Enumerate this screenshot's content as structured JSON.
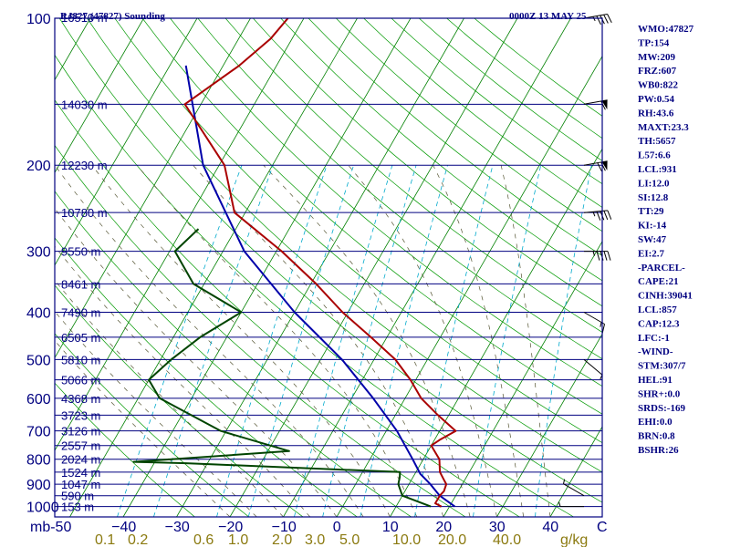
{
  "chart_data": {
    "type": "skew-t",
    "title": "RJ827 (47827) Sounding",
    "datetime": "0000Z 13 MAY 25",
    "pressure_ticks": [
      100,
      200,
      300,
      400,
      500,
      600,
      700,
      800,
      900,
      1000
    ],
    "pressure_unit": "mb",
    "temp_ticks": [
      -50,
      -40,
      -30,
      -20,
      -10,
      0,
      10,
      20,
      30,
      40
    ],
    "temp_tick_labels": [
      "mb-50",
      "−40",
      "−30",
      "−20",
      "−10",
      "0",
      "10",
      "20",
      "30",
      "40"
    ],
    "c_label": "C",
    "mixing_ratio_labels": [
      "0.1",
      "0.2",
      "0.6",
      "1.0",
      "2.0",
      "3.0",
      "5.0",
      "10.0",
      "20.0",
      "40.0"
    ],
    "mixing_ratio_unit": "g/kg",
    "heights": [
      {
        "label": "16510 m",
        "p": 100
      },
      {
        "label": "14030 m",
        "p": 150
      },
      {
        "label": "12230 m",
        "p": 200
      },
      {
        "label": "10780 m",
        "p": 250
      },
      {
        "label": "9550 m",
        "p": 300
      },
      {
        "label": "8461 m",
        "p": 350
      },
      {
        "label": "7490 m",
        "p": 400
      },
      {
        "label": "6505 m",
        "p": 450
      },
      {
        "label": "5810 m",
        "p": 500
      },
      {
        "label": "5066 m",
        "p": 550
      },
      {
        "label": "4368 m",
        "p": 600
      },
      {
        "label": "3723 m",
        "p": 650
      },
      {
        "label": "3126 m",
        "p": 700
      },
      {
        "label": "2557 m",
        "p": 750
      },
      {
        "label": "2024 m",
        "p": 800
      },
      {
        "label": "1524 m",
        "p": 850
      },
      {
        "label": "1047 m",
        "p": 900
      },
      {
        "label": "590 m",
        "p": 950
      },
      {
        "label": "153 m",
        "p": 1000
      }
    ],
    "temperature": [
      {
        "p": 100,
        "t": -63
      },
      {
        "p": 110,
        "t": -64
      },
      {
        "p": 125,
        "t": -67
      },
      {
        "p": 150,
        "t": -73
      },
      {
        "p": 200,
        "t": -59
      },
      {
        "p": 250,
        "t": -52
      },
      {
        "p": 300,
        "t": -39
      },
      {
        "p": 350,
        "t": -29
      },
      {
        "p": 400,
        "t": -21
      },
      {
        "p": 450,
        "t": -13
      },
      {
        "p": 500,
        "t": -6
      },
      {
        "p": 550,
        "t": -1
      },
      {
        "p": 600,
        "t": 3
      },
      {
        "p": 650,
        "t": 8
      },
      {
        "p": 700,
        "t": 13
      },
      {
        "p": 730,
        "t": 11
      },
      {
        "p": 750,
        "t": 10
      },
      {
        "p": 800,
        "t": 13
      },
      {
        "p": 850,
        "t": 14.5
      },
      {
        "p": 880,
        "t": 16
      },
      {
        "p": 900,
        "t": 17
      },
      {
        "p": 930,
        "t": 17.3
      },
      {
        "p": 950,
        "t": 17
      },
      {
        "p": 985,
        "t": 17
      },
      {
        "p": 1000,
        "t": 18.5
      }
    ],
    "dewpoint": [
      {
        "p": 270,
        "t": -57
      },
      {
        "p": 300,
        "t": -59
      },
      {
        "p": 350,
        "t": -52
      },
      {
        "p": 400,
        "t": -40
      },
      {
        "p": 450,
        "t": -45
      },
      {
        "p": 500,
        "t": -48
      },
      {
        "p": 550,
        "t": -50
      },
      {
        "p": 600,
        "t": -46
      },
      {
        "p": 700,
        "t": -31
      },
      {
        "p": 770,
        "t": -16
      },
      {
        "p": 810,
        "t": -44
      },
      {
        "p": 815,
        "t": -34
      },
      {
        "p": 850,
        "t": 7
      },
      {
        "p": 870,
        "t": 7.5
      },
      {
        "p": 900,
        "t": 8
      },
      {
        "p": 950,
        "t": 10
      },
      {
        "p": 1000,
        "t": 16.5
      }
    ],
    "parcel": [
      {
        "p": 125,
        "t": -77
      },
      {
        "p": 200,
        "t": -63
      },
      {
        "p": 300,
        "t": -46
      },
      {
        "p": 400,
        "t": -30
      },
      {
        "p": 500,
        "t": -16
      },
      {
        "p": 600,
        "t": -6
      },
      {
        "p": 700,
        "t": 2
      },
      {
        "p": 800,
        "t": 8
      },
      {
        "p": 857,
        "t": 11
      },
      {
        "p": 900,
        "t": 14
      },
      {
        "p": 950,
        "t": 17
      },
      {
        "p": 1000,
        "t": 21
      }
    ],
    "wind_barbs": [
      {
        "p": 100,
        "dir": 260,
        "kt": 45
      },
      {
        "p": 150,
        "dir": 260,
        "kt": 60
      },
      {
        "p": 200,
        "dir": 260,
        "kt": 70
      },
      {
        "p": 250,
        "dir": 265,
        "kt": 45
      },
      {
        "p": 300,
        "dir": 270,
        "kt": 45
      },
      {
        "p": 400,
        "dir": 300,
        "kt": 15
      },
      {
        "p": 500,
        "dir": 310,
        "kt": 5
      },
      {
        "p": 950,
        "dir": 120,
        "kt": 5
      },
      {
        "p": 1000,
        "dir": 90,
        "kt": 5
      }
    ],
    "indices": [
      "WMO:47827",
      "TP:154",
      "MW:209",
      "FRZ:607",
      "WB0:822",
      "PW:0.54",
      "RH:43.6",
      "MAXT:23.3",
      "TH:5657",
      "L57:6.6",
      "LCL:931",
      "LI:12.0",
      "SI:12.8",
      "TT:29",
      "KI:-14",
      "SW:47",
      "EI:2.7",
      "-PARCEL-",
      "CAPE:21",
      "CINH:39041",
      "LCL:857",
      "CAP:12.3",
      "LFC:-1",
      "-WIND-",
      "STM:307/7",
      "HEL:91",
      "SHR+:0.0",
      "SRDS:-169",
      "EHI:0.0",
      "BRN:0.8",
      "BSHR:26"
    ],
    "colors": {
      "frame": "#000080",
      "isobar": "#000080",
      "isotherm": "#008000",
      "mixing_ratio": "#00aacc",
      "dry_adiabat": "#009900",
      "moist_adiabat": "#555533",
      "temperature": "#aa0000",
      "dewpoint": "#004400",
      "parcel": "#0000aa",
      "mixing_label": "#8b7a10"
    }
  }
}
